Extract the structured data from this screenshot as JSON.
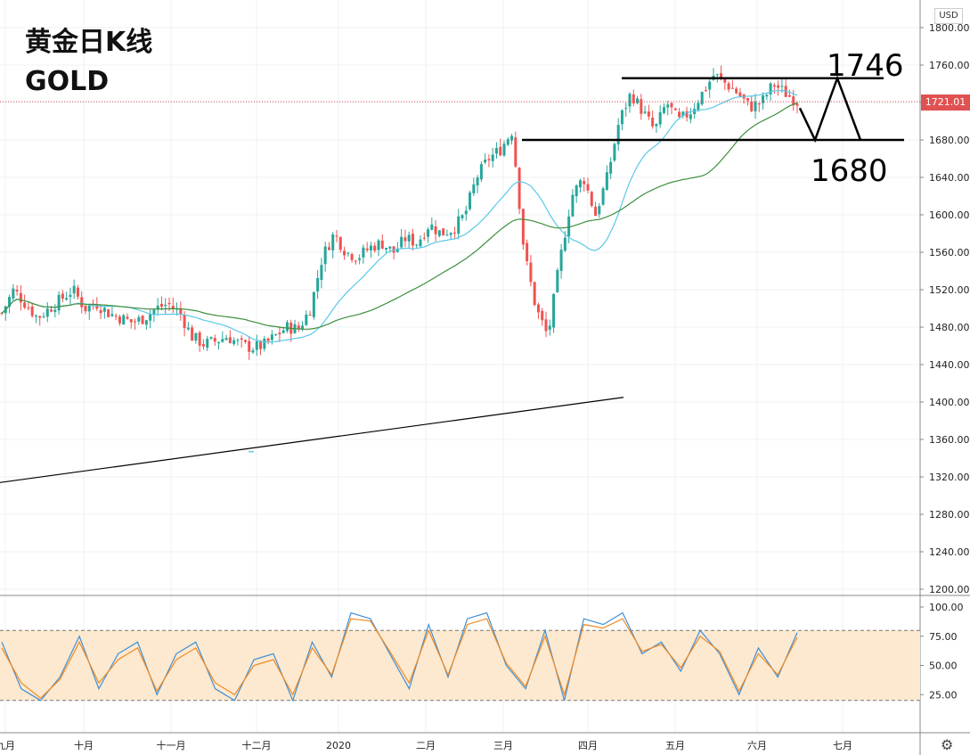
{
  "header": {
    "title": "黄金日K线",
    "symbol": "GOLD"
  },
  "currency": "USD",
  "last_price": "1721.01",
  "settings_icon": "gear-icon",
  "annotations": {
    "upper_level": "1746",
    "lower_level": "1680"
  },
  "colors": {
    "up": "#26a69a",
    "down": "#ef5350",
    "ma_fast": "#5bc8e8",
    "ma_slow": "#3d8f3d",
    "stoch_k": "#3d8fd8",
    "stoch_d": "#f08a24",
    "band": "#fde9cf",
    "price_line": "#e05252"
  },
  "chart_data": [
    {
      "type": "candlestick",
      "title": "黄金日K线",
      "ylim": [
        1200,
        1800
      ],
      "y_ticks": [
        "1800.00",
        "1760.00",
        "1720.00",
        "1680.00",
        "1640.00",
        "1600.00",
        "1560.00",
        "1520.00",
        "1480.00",
        "1440.00",
        "1400.00",
        "1360.00",
        "1320.00",
        "1280.00",
        "1240.00",
        "1200.00"
      ],
      "x_labels": [
        "九月",
        "十月",
        "十一月",
        "十二月",
        "2020",
        "二月",
        "三月",
        "四月",
        "五月",
        "六月",
        "七月"
      ],
      "current_price": 1721.01,
      "horizontal_lines": [
        1746,
        1680
      ],
      "trend_segments": [
        {
          "name": "horizontal lines",
          "values": [
            1680,
            1746
          ]
        }
      ],
      "close_path": [
        1495,
        1520,
        1505,
        1490,
        1500,
        1510,
        1520,
        1500,
        1505,
        1495,
        1490,
        1485,
        1490,
        1500,
        1505,
        1495,
        1470,
        1462,
        1465,
        1470,
        1462,
        1458,
        1460,
        1470,
        1480,
        1478,
        1500,
        1555,
        1580,
        1560,
        1555,
        1565,
        1570,
        1560,
        1575,
        1570,
        1590,
        1580,
        1585,
        1600,
        1640,
        1660,
        1670,
        1690,
        1560,
        1500,
        1470,
        1550,
        1620,
        1640,
        1600,
        1640,
        1700,
        1730,
        1710,
        1690,
        1720,
        1700,
        1710,
        1730,
        1750,
        1740,
        1730,
        1715,
        1720,
        1740,
        1730,
        1721
      ]
    },
    {
      "type": "line",
      "title": "",
      "ylim": [
        0,
        100
      ],
      "y_ticks": [
        "100.00",
        "75.00",
        "50.00",
        "25.00"
      ],
      "band": [
        20,
        80
      ],
      "series": [
        {
          "values": [
            70,
            30,
            20,
            40,
            75,
            30,
            60,
            70,
            25,
            60,
            70,
            30,
            20,
            55,
            60,
            20,
            70,
            40,
            95,
            90,
            60,
            30,
            85,
            40,
            90,
            95,
            50,
            30,
            80,
            20,
            90,
            85,
            95,
            60,
            70,
            45,
            80,
            60,
            25,
            65,
            40,
            78
          ]
        },
        {
          "values": [
            65,
            35,
            22,
            38,
            70,
            35,
            55,
            65,
            28,
            55,
            65,
            35,
            25,
            50,
            55,
            25,
            65,
            42,
            90,
            88,
            62,
            35,
            80,
            42,
            85,
            90,
            52,
            32,
            75,
            25,
            85,
            82,
            90,
            62,
            68,
            48,
            75,
            62,
            28,
            60,
            42,
            74
          ]
        }
      ]
    }
  ]
}
